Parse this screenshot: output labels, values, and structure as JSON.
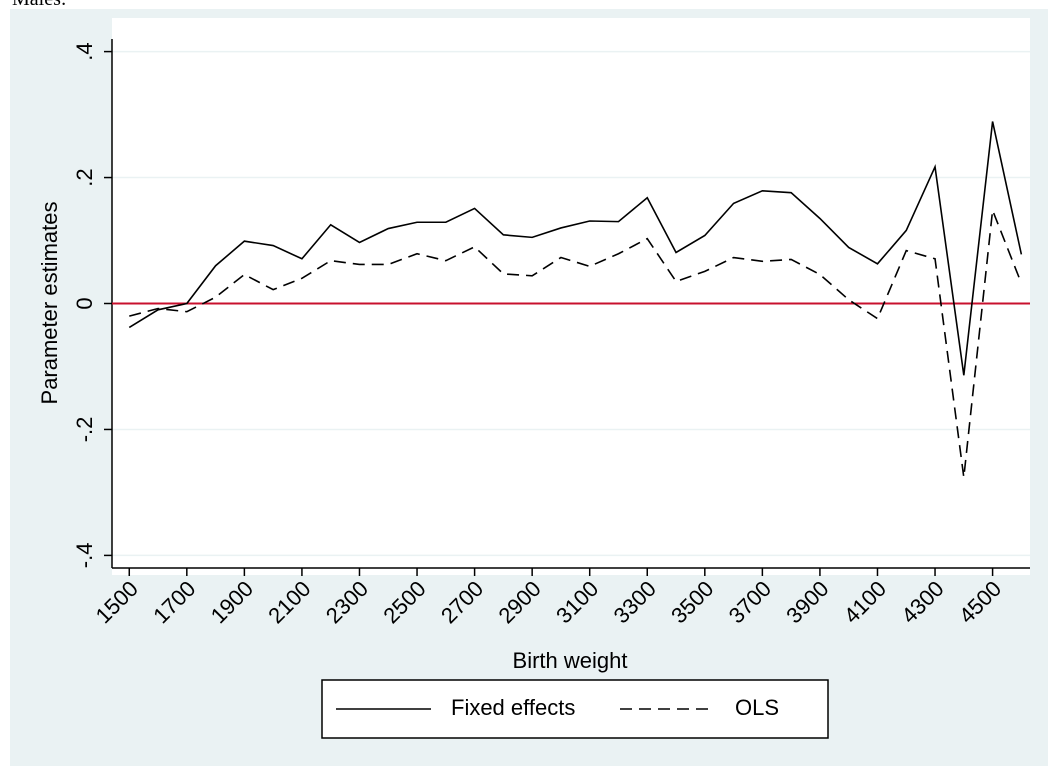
{
  "chart_data": {
    "type": "line",
    "title": "Males:",
    "x_label": "Birth weight",
    "y_label": "Parameter estimates",
    "x": [
      1500,
      1600,
      1700,
      1800,
      1900,
      2000,
      2100,
      2200,
      2300,
      2400,
      2500,
      2600,
      2700,
      2800,
      2900,
      3000,
      3100,
      3200,
      3300,
      3400,
      3500,
      3600,
      3700,
      3800,
      3900,
      4000,
      4100,
      4200,
      4300,
      4400,
      4500,
      4600
    ],
    "series": [
      {
        "name": "Fixed effects",
        "color": "#000000",
        "dash": "solid",
        "values": [
          -0.038,
          -0.01,
          0,
          0.06,
          0.099,
          0.092,
          0.071,
          0.125,
          0.097,
          0.119,
          0.129,
          0.129,
          0.151,
          0.109,
          0.105,
          0.12,
          0.131,
          0.13,
          0.168,
          0.081,
          0.108,
          0.159,
          0.179,
          0.176,
          0.135,
          0.089,
          0.063,
          0.116,
          0.217,
          -0.114,
          0.289,
          0.078
        ]
      },
      {
        "name": "OLS",
        "color": "#000000",
        "dash": "dashed",
        "values": [
          -0.02,
          -0.008,
          -0.013,
          0.01,
          0.046,
          0.022,
          0.04,
          0.068,
          0.062,
          0.062,
          0.079,
          0.068,
          0.09,
          0.047,
          0.044,
          0.073,
          0.059,
          0.079,
          0.103,
          0.035,
          0.051,
          0.073,
          0.067,
          0.07,
          0.046,
          0.006,
          -0.024,
          0.084,
          0.071,
          -0.276,
          0.148,
          0.032
        ]
      }
    ],
    "xlim": [
      1440,
      4630
    ],
    "ylim": [
      -0.42,
      0.42
    ],
    "xticks": [
      1500,
      1700,
      1900,
      2100,
      2300,
      2500,
      2700,
      2900,
      3100,
      3300,
      3500,
      3700,
      3900,
      4100,
      4300,
      4500
    ],
    "yticks": [
      {
        "value": -0.4,
        "label": "-.4"
      },
      {
        "value": -0.2,
        "label": "-.2"
      },
      0,
      {
        "value": 0.2,
        "label": ".2"
      },
      {
        "value": 0.4,
        "label": ".4"
      }
    ],
    "grid": true,
    "reference_line": {
      "value": 0,
      "color": "#c8102e"
    },
    "legend": "bottom"
  }
}
